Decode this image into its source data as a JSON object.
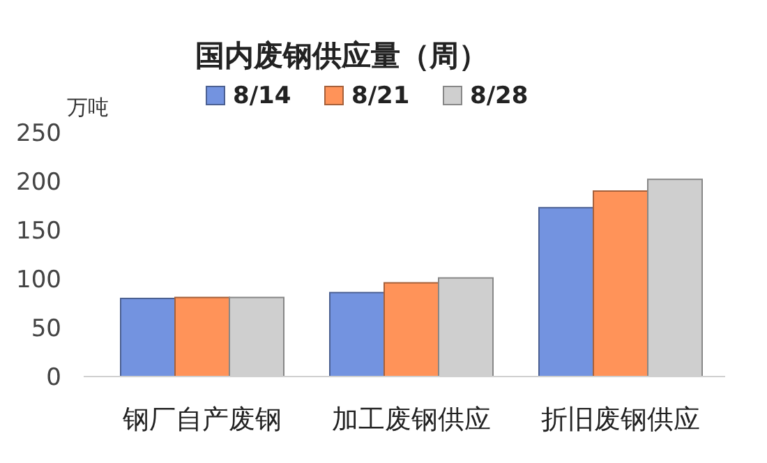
{
  "chart_data": {
    "type": "bar",
    "title": "国内废钢供应量（周）",
    "ylabel": "万吨",
    "categories": [
      "钢厂自产废钢",
      "加工废钢供应",
      "折旧废钢供应"
    ],
    "series": [
      {
        "name": "8/14",
        "color": "#7393e0",
        "values": [
          80,
          86,
          173
        ]
      },
      {
        "name": "8/21",
        "color": "#ff9359",
        "values": [
          81,
          96,
          190
        ]
      },
      {
        "name": "8/28",
        "color": "#cfcfcf",
        "values": [
          81,
          101,
          202
        ]
      }
    ],
    "ylim": [
      0,
      250
    ],
    "yticks": [
      0,
      50,
      100,
      150,
      200,
      250
    ],
    "grid": false,
    "legend": "top"
  }
}
